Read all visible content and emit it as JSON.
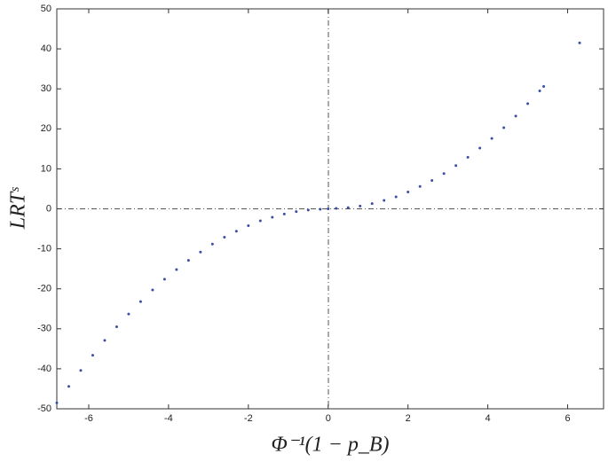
{
  "chart_data": {
    "type": "scatter",
    "x_label": "Φ⁻¹(1 − p_B)",
    "y_label": "LRTˢ",
    "color": "#3b4fa6",
    "x": [
      -6.8,
      -6.5,
      -6.2,
      -5.9,
      -5.6,
      -5.3,
      -5.0,
      -4.7,
      -4.4,
      -4.1,
      -3.8,
      -3.5,
      -3.2,
      -2.9,
      -2.6,
      -2.3,
      -2.0,
      -1.7,
      -1.4,
      -1.1,
      -0.8,
      -0.5,
      -0.2,
      0,
      0.2,
      0.5,
      0.8,
      1.1,
      1.4,
      1.7,
      2.0,
      2.3,
      2.6,
      2.9,
      3.2,
      3.5,
      3.8,
      4.1,
      4.4,
      4.7,
      5.0,
      5.3,
      5.4,
      6.3
    ],
    "values": [
      -48.5,
      -44.4,
      -40.4,
      -36.6,
      -32.9,
      -29.5,
      -26.3,
      -23.2,
      -20.3,
      -17.6,
      -15.2,
      -12.9,
      -10.8,
      -8.8,
      -7.1,
      -5.6,
      -4.2,
      -3.0,
      -2.1,
      -1.3,
      -0.7,
      -0.3,
      -0.1,
      0,
      0.1,
      0.3,
      0.7,
      1.3,
      2.1,
      3.0,
      4.2,
      5.6,
      7.1,
      8.8,
      10.8,
      12.9,
      15.2,
      17.6,
      20.3,
      23.2,
      26.3,
      29.5,
      30.6,
      41.5
    ],
    "xlim": [
      -6.8,
      6.9
    ],
    "ylim": [
      -50,
      50
    ],
    "xticks": [
      -6,
      -4,
      -2,
      0,
      2,
      4,
      6
    ],
    "yticks": [
      -50,
      -40,
      -30,
      -20,
      -10,
      0,
      10,
      20,
      30,
      40,
      50
    ]
  }
}
